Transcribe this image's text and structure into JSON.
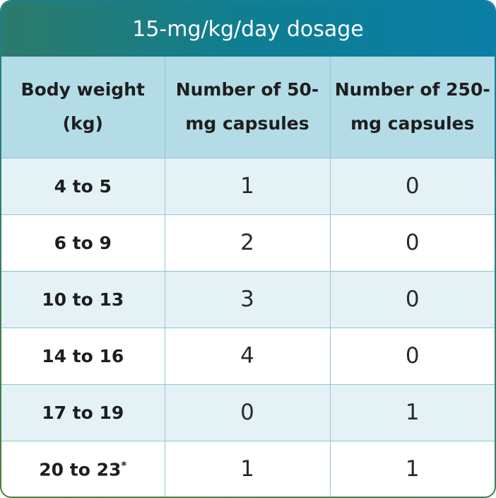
{
  "header": {
    "title": "15-mg/kg/day dosage"
  },
  "table": {
    "columns": [
      "Body weight (kg)",
      "Number of 50-mg capsules",
      "Number of 250-mg capsules"
    ],
    "rows": [
      [
        "4 to 5",
        1,
        0
      ],
      [
        "6 to 9",
        2,
        0
      ],
      [
        "10 to 13",
        3,
        0
      ],
      [
        "14 to 16",
        4,
        0
      ],
      [
        "17 to 19",
        0,
        1
      ],
      [
        "20 to 23",
        1,
        1
      ]
    ],
    "footnote_mark": "*"
  }
}
